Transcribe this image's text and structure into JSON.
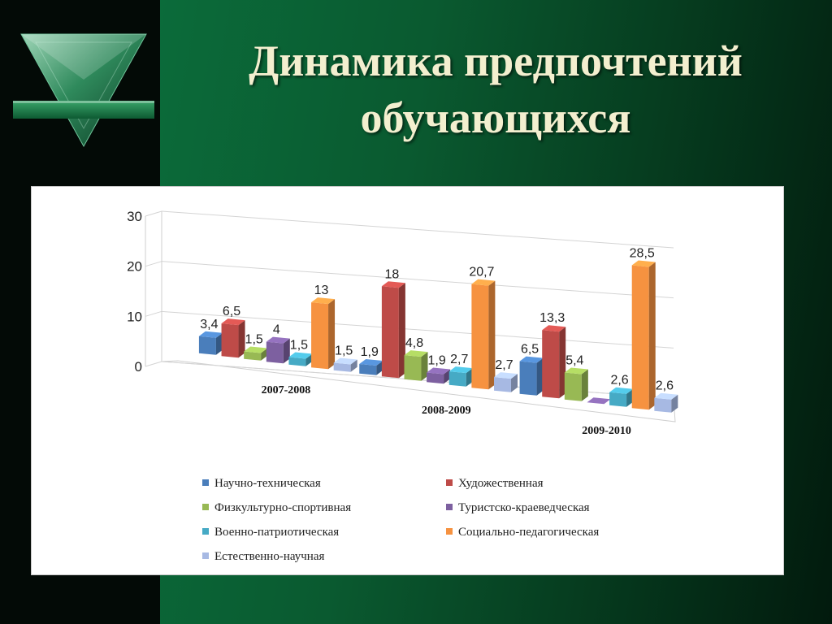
{
  "slide": {
    "title_line1": "Динамика предпочтений",
    "title_line2": "обучающихся"
  },
  "chart_data": {
    "type": "bar",
    "title": "",
    "xlabel": "",
    "ylabel": "",
    "ylim": [
      0,
      30
    ],
    "yticks": [
      "0",
      "10",
      "20",
      "30"
    ],
    "grid": true,
    "legend_position": "bottom",
    "categories": [
      "2007-2008",
      "2008-2009",
      "2009-2010"
    ],
    "series": [
      {
        "name": "Научно-техническая",
        "color": "#4a7ebb",
        "values": [
          3.4,
          1.9,
          6.5
        ],
        "labels": [
          "3,4",
          "1,9",
          "6,5"
        ]
      },
      {
        "name": "Художественная",
        "color": "#be4b48",
        "values": [
          6.5,
          18,
          13.3
        ],
        "labels": [
          "6,5",
          "18",
          "13,3"
        ]
      },
      {
        "name": "Физкультурно-спортивная",
        "color": "#98b954",
        "values": [
          1.5,
          4.8,
          5.4
        ],
        "labels": [
          "1,5",
          "4,8",
          "5,4"
        ]
      },
      {
        "name": "Туристско-краеведческая",
        "color": "#7d60a0",
        "values": [
          4,
          1.9,
          0
        ],
        "labels": [
          "4",
          "1,9",
          ""
        ]
      },
      {
        "name": "Военно-патриотическая",
        "color": "#46aac5",
        "values": [
          1.5,
          2.7,
          2.6
        ],
        "labels": [
          "1,5",
          "2,7",
          "2,6"
        ]
      },
      {
        "name": "Социально-педагогическая",
        "color": "#f69240",
        "values": [
          13,
          20.7,
          28.5
        ],
        "labels": [
          "13",
          "20,7",
          "28,5"
        ]
      },
      {
        "name": "Естественно-научная",
        "color": "#a7b9e3",
        "values": [
          1.5,
          2.7,
          2.6
        ],
        "labels": [
          "1,5",
          "2,7",
          "2,6"
        ]
      }
    ]
  }
}
